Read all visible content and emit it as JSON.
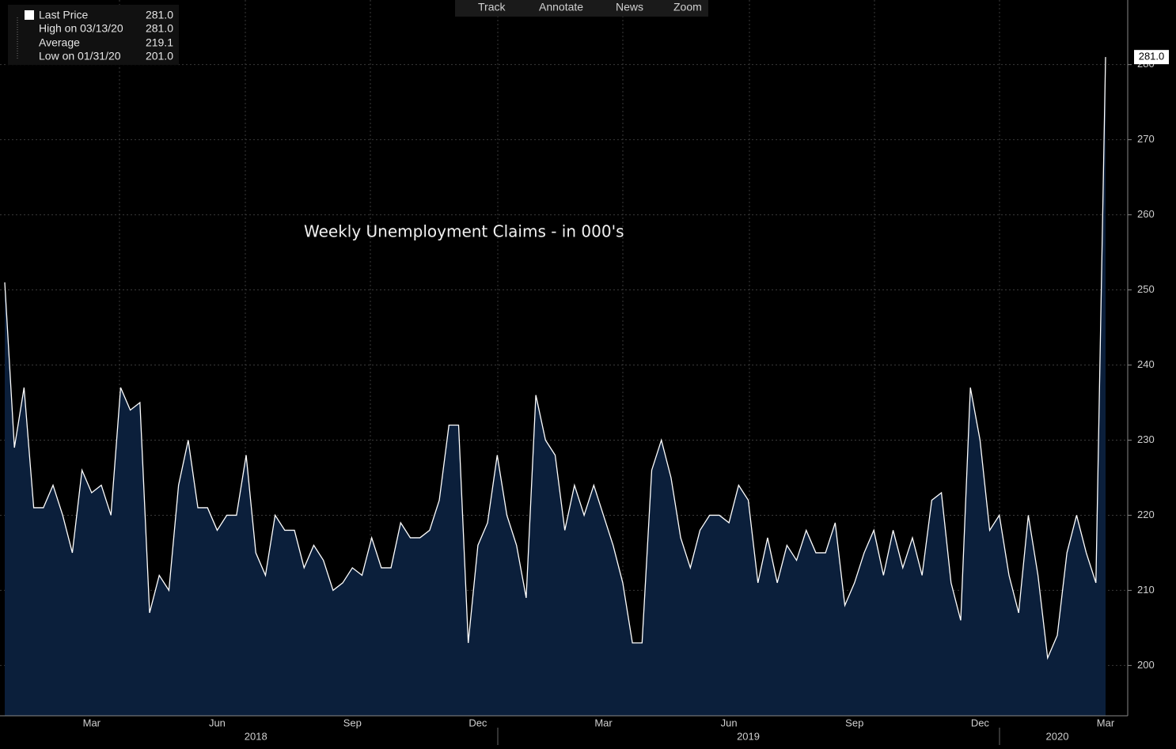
{
  "chart_data": {
    "type": "area",
    "annotation": "Weekly Unemployment Claims - in 000's",
    "toolbar": [
      "Track",
      "Annotate",
      "News",
      "Zoom"
    ],
    "legend": [
      {
        "label": "Last Price",
        "value": "281.0"
      },
      {
        "label": "High on 03/13/20",
        "value": "281.0"
      },
      {
        "label": "Average",
        "value": "219.1"
      },
      {
        "label": "Low on 01/31/20",
        "value": "201.0"
      }
    ],
    "color": "#ffffff",
    "fill": "#0b1f3b",
    "grid": true,
    "ylim": [
      193.3,
      288.6
    ],
    "yticks": [
      200,
      210,
      220,
      230,
      240,
      250,
      260,
      270,
      280
    ],
    "categories": [
      null,
      null,
      null,
      null,
      null,
      null,
      null,
      null,
      null,
      "Mar",
      null,
      null,
      null,
      null,
      null,
      null,
      null,
      null,
      null,
      null,
      null,
      null,
      "Jun",
      null,
      null,
      null,
      null,
      null,
      null,
      null,
      null,
      null,
      null,
      null,
      null,
      null,
      "Sep",
      null,
      null,
      null,
      null,
      null,
      null,
      null,
      null,
      null,
      null,
      null,
      null,
      "Dec",
      null,
      null,
      null,
      null,
      null,
      null,
      null,
      null,
      null,
      null,
      null,
      null,
      "Mar",
      null,
      null,
      null,
      null,
      null,
      null,
      null,
      null,
      null,
      null,
      null,
      null,
      "Jun",
      null,
      null,
      null,
      null,
      null,
      null,
      null,
      null,
      null,
      null,
      null,
      null,
      "Sep",
      null,
      null,
      null,
      null,
      null,
      null,
      null,
      null,
      null,
      null,
      null,
      null,
      "Dec",
      null,
      null,
      null,
      null,
      null,
      null,
      null,
      null,
      null,
      null,
      null,
      null,
      "Mar"
    ],
    "category_years": [
      null,
      null,
      null,
      null,
      null,
      null,
      null,
      null,
      null,
      null,
      null,
      null,
      null,
      null,
      null,
      null,
      null,
      null,
      null,
      null,
      null,
      null,
      null,
      null,
      null,
      null,
      "2018",
      null,
      null,
      null,
      null,
      null,
      null,
      null,
      null,
      null,
      null,
      null,
      null,
      null,
      null,
      null,
      null,
      null,
      null,
      null,
      null,
      null,
      null,
      null,
      null,
      null,
      null,
      null,
      null,
      null,
      null,
      null,
      null,
      null,
      null,
      null,
      null,
      null,
      null,
      null,
      null,
      null,
      null,
      null,
      null,
      null,
      null,
      null,
      null,
      null,
      null,
      "2019",
      null,
      null,
      null,
      null,
      null,
      null,
      null,
      null,
      null,
      null,
      null,
      null,
      null,
      null,
      null,
      null,
      null,
      null,
      null,
      null,
      null,
      null,
      null,
      null,
      null,
      null,
      null,
      null,
      null,
      null,
      null,
      "2020",
      null,
      null,
      null,
      null
    ],
    "values": [
      251,
      229,
      237,
      221,
      221,
      224,
      220,
      215,
      226,
      223,
      224,
      220,
      237,
      234,
      235,
      207,
      212,
      210,
      224,
      230,
      221,
      221,
      218,
      220,
      220,
      228,
      215,
      212,
      220,
      218,
      218,
      213,
      216,
      214,
      210,
      211,
      213,
      212,
      217,
      213,
      213,
      219,
      217,
      217,
      218,
      222,
      232,
      232,
      203,
      216,
      219,
      228,
      220,
      216,
      209,
      236,
      230,
      228,
      218,
      224,
      220,
      224,
      220,
      216,
      211,
      203,
      203,
      226,
      230,
      225,
      217,
      213,
      218,
      220,
      220,
      219,
      224,
      222,
      211,
      217,
      211,
      216,
      214,
      218,
      215,
      215,
      219,
      208,
      211,
      215,
      218,
      212,
      218,
      213,
      217,
      212,
      222,
      223,
      211,
      206,
      237,
      230,
      218,
      220,
      212,
      207,
      220,
      212,
      201,
      204,
      215,
      220,
      215,
      211,
      281
    ]
  }
}
